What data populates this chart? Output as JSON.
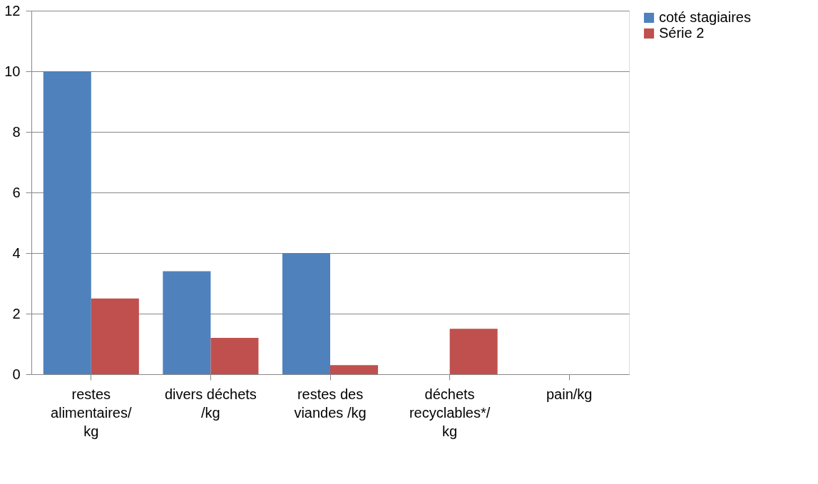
{
  "chart_data": {
    "type": "bar",
    "categories": [
      "restes\nalimentaires/\nkg",
      "divers déchets\n/kg",
      "restes des\nviandes /kg",
      "déchets\nrecyclables*/\nkg",
      "pain/kg"
    ],
    "series": [
      {
        "name": "coté stagiaires",
        "color": "#4f81bd",
        "values": [
          10,
          3.4,
          4,
          0,
          0
        ]
      },
      {
        "name": "Série 2",
        "color": "#c0504d",
        "values": [
          2.5,
          1.2,
          0.3,
          1.5,
          0
        ]
      }
    ],
    "ylim": [
      0,
      12
    ],
    "yticks": [
      0,
      2,
      4,
      6,
      8,
      10,
      12
    ],
    "grid": "y",
    "legend": "right"
  }
}
